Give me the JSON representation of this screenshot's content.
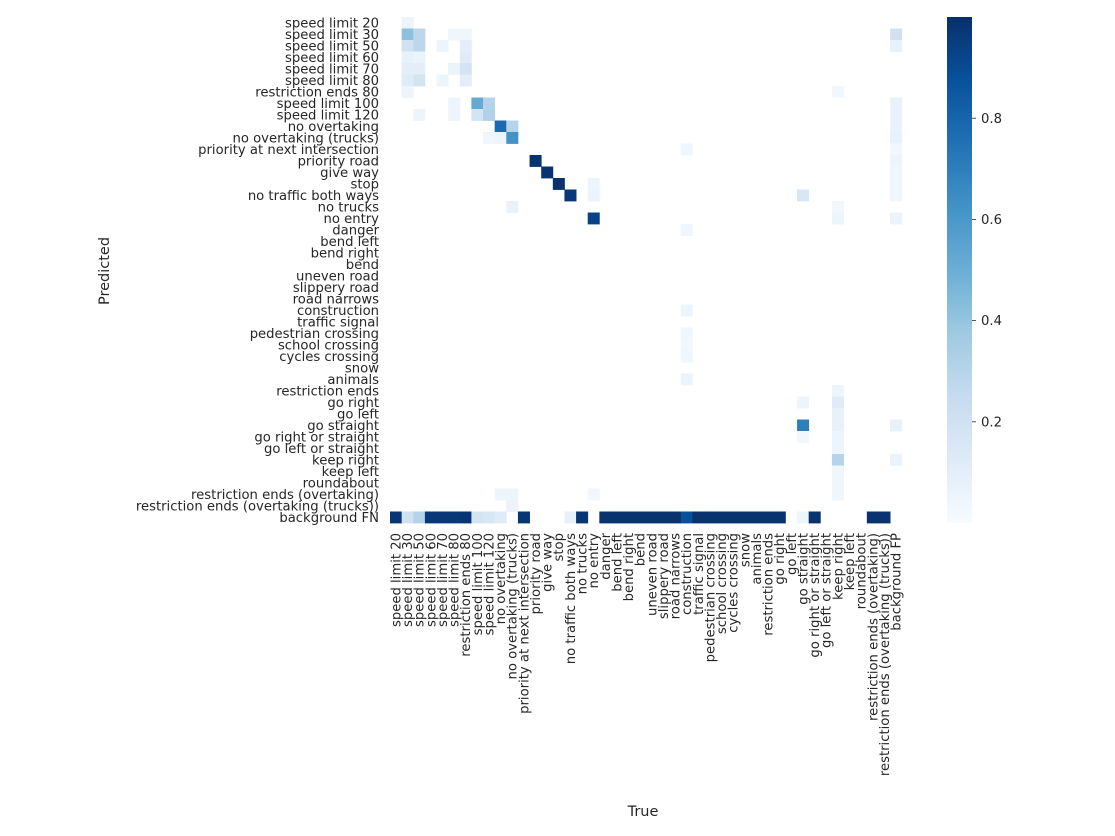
{
  "chart_data": {
    "type": "heatmap",
    "title": "",
    "xlabel": "True",
    "ylabel": "Predicted",
    "colormap": "Blues",
    "colorbar": {
      "ticks": [
        0.2,
        0.4,
        0.6,
        0.8
      ],
      "min": 0.0,
      "max": 1.0
    },
    "grid": false,
    "rows": [
      "speed limit 20",
      "speed limit 30",
      "speed limit 50",
      "speed limit 60",
      "speed limit 70",
      "speed limit 80",
      "restriction ends 80",
      "speed limit 100",
      "speed limit 120",
      "no overtaking",
      "no overtaking (trucks)",
      "priority at next intersection",
      "priority road",
      "give way",
      "stop",
      "no traffic both ways",
      "no trucks",
      "no entry",
      "danger",
      "bend left",
      "bend right",
      "bend",
      "uneven road",
      "slippery road",
      "road narrows",
      "construction",
      "traffic signal",
      "pedestrian crossing",
      "school crossing",
      "cycles crossing",
      "snow",
      "animals",
      "restriction ends",
      "go right",
      "go left",
      "go straight",
      "go right or straight",
      "go left or straight",
      "keep right",
      "keep left",
      "roundabout",
      "restriction ends (overtaking)",
      "restriction ends (overtaking (trucks))",
      "background FN"
    ],
    "columns": [
      "speed limit 20",
      "speed limit 30",
      "speed limit 50",
      "speed limit 60",
      "speed limit 70",
      "speed limit 80",
      "restriction ends 80",
      "speed limit 100",
      "speed limit 120",
      "no overtaking",
      "no overtaking (trucks)",
      "priority at next intersection",
      "priority road",
      "give way",
      "stop",
      "no traffic both ways",
      "no trucks",
      "no entry",
      "danger",
      "bend left",
      "bend right",
      "bend",
      "uneven road",
      "slippery road",
      "road narrows",
      "construction",
      "traffic signal",
      "pedestrian crossing",
      "school crossing",
      "cycles crossing",
      "snow",
      "animals",
      "restriction ends",
      "go right",
      "go left",
      "go straight",
      "go right or straight",
      "go left or straight",
      "keep right",
      "keep left",
      "roundabout",
      "restriction ends (overtaking)",
      "restriction ends (overtaking (trucks))",
      "background FP"
    ],
    "cells": [
      [
        0,
        1,
        0.05
      ],
      [
        1,
        1,
        0.42
      ],
      [
        1,
        2,
        0.28
      ],
      [
        1,
        5,
        0.04
      ],
      [
        1,
        6,
        0.04
      ],
      [
        1,
        43,
        0.2
      ],
      [
        2,
        1,
        0.2
      ],
      [
        2,
        2,
        0.28
      ],
      [
        2,
        4,
        0.05
      ],
      [
        2,
        6,
        0.1
      ],
      [
        2,
        43,
        0.08
      ],
      [
        3,
        1,
        0.08
      ],
      [
        3,
        2,
        0.06
      ],
      [
        3,
        6,
        0.12
      ],
      [
        4,
        1,
        0.1
      ],
      [
        4,
        2,
        0.1
      ],
      [
        4,
        5,
        0.06
      ],
      [
        4,
        6,
        0.18
      ],
      [
        5,
        1,
        0.12
      ],
      [
        5,
        2,
        0.18
      ],
      [
        5,
        4,
        0.05
      ],
      [
        5,
        6,
        0.1
      ],
      [
        6,
        1,
        0.05
      ],
      [
        6,
        38,
        0.03
      ],
      [
        7,
        5,
        0.05
      ],
      [
        7,
        7,
        0.52
      ],
      [
        7,
        8,
        0.3
      ],
      [
        7,
        43,
        0.07
      ],
      [
        8,
        2,
        0.05
      ],
      [
        8,
        5,
        0.05
      ],
      [
        8,
        7,
        0.18
      ],
      [
        8,
        8,
        0.32
      ],
      [
        8,
        43,
        0.07
      ],
      [
        9,
        9,
        0.78
      ],
      [
        9,
        10,
        0.3
      ],
      [
        9,
        43,
        0.07
      ],
      [
        10,
        8,
        0.04
      ],
      [
        10,
        9,
        0.05
      ],
      [
        10,
        10,
        0.62
      ],
      [
        10,
        43,
        0.08
      ],
      [
        11,
        25,
        0.04
      ],
      [
        11,
        43,
        0.03
      ],
      [
        12,
        12,
        0.99
      ],
      [
        12,
        43,
        0.05
      ],
      [
        13,
        13,
        0.99
      ],
      [
        13,
        43,
        0.04
      ],
      [
        14,
        14,
        0.99
      ],
      [
        14,
        17,
        0.05
      ],
      [
        14,
        43,
        0.04
      ],
      [
        15,
        15,
        0.97
      ],
      [
        15,
        17,
        0.06
      ],
      [
        15,
        35,
        0.16
      ],
      [
        15,
        43,
        0.04
      ],
      [
        16,
        10,
        0.07
      ],
      [
        16,
        38,
        0.03
      ],
      [
        17,
        17,
        0.93
      ],
      [
        17,
        38,
        0.05
      ],
      [
        17,
        43,
        0.06
      ],
      [
        18,
        25,
        0.04
      ],
      [
        25,
        25,
        0.05
      ],
      [
        27,
        25,
        0.04
      ],
      [
        28,
        25,
        0.03
      ],
      [
        29,
        25,
        0.04
      ],
      [
        31,
        25,
        0.06
      ],
      [
        32,
        38,
        0.05
      ],
      [
        33,
        35,
        0.05
      ],
      [
        33,
        38,
        0.12
      ],
      [
        34,
        38,
        0.08
      ],
      [
        35,
        35,
        0.7
      ],
      [
        35,
        38,
        0.08
      ],
      [
        35,
        43,
        0.08
      ],
      [
        36,
        35,
        0.03
      ],
      [
        36,
        38,
        0.05
      ],
      [
        37,
        38,
        0.05
      ],
      [
        38,
        38,
        0.3
      ],
      [
        38,
        43,
        0.06
      ],
      [
        39,
        38,
        0.04
      ],
      [
        40,
        38,
        0.04
      ],
      [
        41,
        9,
        0.05
      ],
      [
        41,
        10,
        0.05
      ],
      [
        41,
        17,
        0.03
      ],
      [
        41,
        38,
        0.04
      ],
      [
        42,
        10,
        0.06
      ],
      [
        43,
        0,
        0.98
      ],
      [
        43,
        1,
        0.2
      ],
      [
        43,
        2,
        0.3
      ],
      [
        43,
        3,
        0.97
      ],
      [
        43,
        4,
        0.97
      ],
      [
        43,
        5,
        0.97
      ],
      [
        43,
        6,
        0.98
      ],
      [
        43,
        7,
        0.18
      ],
      [
        43,
        8,
        0.16
      ],
      [
        43,
        9,
        0.12
      ],
      [
        43,
        11,
        0.98
      ],
      [
        43,
        15,
        0.08
      ],
      [
        43,
        16,
        0.98
      ],
      [
        43,
        18,
        0.99
      ],
      [
        43,
        19,
        0.99
      ],
      [
        43,
        20,
        0.99
      ],
      [
        43,
        21,
        0.99
      ],
      [
        43,
        22,
        0.99
      ],
      [
        43,
        23,
        0.99
      ],
      [
        43,
        24,
        0.99
      ],
      [
        43,
        25,
        0.88
      ],
      [
        43,
        26,
        0.99
      ],
      [
        43,
        27,
        0.99
      ],
      [
        43,
        28,
        0.99
      ],
      [
        43,
        29,
        0.99
      ],
      [
        43,
        30,
        0.99
      ],
      [
        43,
        31,
        0.99
      ],
      [
        43,
        32,
        0.99
      ],
      [
        43,
        33,
        0.99
      ],
      [
        43,
        35,
        0.05
      ],
      [
        43,
        36,
        0.99
      ],
      [
        43,
        41,
        0.99
      ],
      [
        43,
        42,
        0.99
      ]
    ]
  }
}
